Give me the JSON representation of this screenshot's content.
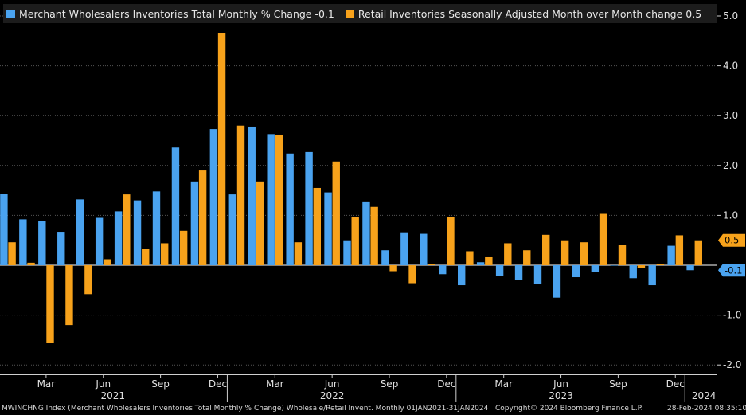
{
  "legend": {
    "items": [
      {
        "label": "Merchant Wholesalers Inventories Total Monthly % Change -0.1",
        "color": "#4aa3f0",
        "icon": "blue-square-icon"
      },
      {
        "label": "Retail Inventories Seasonally Adjusted Month over Month change 0.5",
        "color": "#f7a21b",
        "icon": "orange-square-icon"
      }
    ]
  },
  "footer": {
    "source": "MWINCHNG Index (Merchant Wholesalers Inventories Total Monthly % Change) Wholesale/Retail Invent.  Monthly 01JAN2021-31JAN2024",
    "copyright": "Copyright© 2024 Bloomberg Finance L.P.",
    "timestamp": "28-Feb-2024 08:35:10"
  },
  "chart_data": {
    "type": "bar",
    "grid": true,
    "ylim": [
      -2.0,
      5.0
    ],
    "y_ticks": [
      "5.0",
      "4.0",
      "3.0",
      "2.0",
      "1.0",
      "-1.0",
      "-2.0"
    ],
    "y_tick_values": [
      5,
      4,
      3,
      2,
      1,
      -1,
      -2
    ],
    "month_tick_labels": [
      "Mar",
      "Jun",
      "Sep",
      "Dec",
      "Mar",
      "Jun",
      "Sep",
      "Dec",
      "Mar",
      "Jun",
      "Sep",
      "Dec"
    ],
    "month_tick_index": [
      2,
      5,
      8,
      11,
      14,
      17,
      20,
      23,
      26,
      29,
      32,
      35
    ],
    "year_labels": [
      "2021",
      "2022",
      "2023",
      "2024"
    ],
    "year_label_index": [
      5.5,
      17,
      29,
      36.5
    ],
    "year_separator_index": [
      11.5,
      23.5,
      35.5
    ],
    "last_value_labels": [
      {
        "text": "0.5",
        "value": 0.5,
        "color": "#f7a21b",
        "text_color": "#000000"
      },
      {
        "text": "-0.1",
        "value": -0.1,
        "color": "#4aa3f0",
        "text_color": "#000000"
      }
    ],
    "categories": [
      "Jan 2021",
      "Feb 2021",
      "Mar 2021",
      "Apr 2021",
      "May 2021",
      "Jun 2021",
      "Jul 2021",
      "Aug 2021",
      "Sep 2021",
      "Oct 2021",
      "Nov 2021",
      "Dec 2021",
      "Jan 2022",
      "Feb 2022",
      "Mar 2022",
      "Apr 2022",
      "May 2022",
      "Jun 2022",
      "Jul 2022",
      "Aug 2022",
      "Sep 2022",
      "Oct 2022",
      "Nov 2022",
      "Dec 2022",
      "Jan 2023",
      "Feb 2023",
      "Mar 2023",
      "Apr 2023",
      "May 2023",
      "Jun 2023",
      "Jul 2023",
      "Aug 2023",
      "Sep 2023",
      "Oct 2023",
      "Nov 2023",
      "Dec 2023",
      "Jan 2024"
    ],
    "series": [
      {
        "name": "Merchant Wholesalers Inventories Total Monthly % Change",
        "color": "#4aa3f0",
        "values": [
          1.43,
          0.92,
          0.88,
          0.67,
          1.32,
          0.95,
          1.08,
          1.3,
          1.48,
          2.36,
          1.68,
          2.73,
          1.42,
          2.78,
          2.63,
          2.24,
          2.27,
          1.46,
          0.5,
          1.28,
          0.3,
          0.66,
          0.63,
          -0.18,
          -0.4,
          0.06,
          -0.22,
          -0.3,
          -0.38,
          -0.65,
          -0.24,
          -0.13,
          0.0,
          -0.26,
          -0.4,
          0.39,
          -0.1
        ]
      },
      {
        "name": "Retail Inventories Seasonally Adjusted Month over Month change",
        "color": "#f7a21b",
        "values": [
          0.46,
          0.05,
          -1.55,
          -1.2,
          -0.58,
          0.12,
          1.42,
          0.32,
          0.44,
          0.69,
          1.9,
          4.65,
          2.8,
          1.68,
          2.62,
          0.46,
          1.55,
          2.08,
          0.96,
          1.17,
          -0.12,
          -0.36,
          0.02,
          0.97,
          0.28,
          0.16,
          0.44,
          0.3,
          0.61,
          0.5,
          0.46,
          1.03,
          0.4,
          -0.05,
          0.02,
          0.6,
          0.5
        ]
      }
    ]
  }
}
